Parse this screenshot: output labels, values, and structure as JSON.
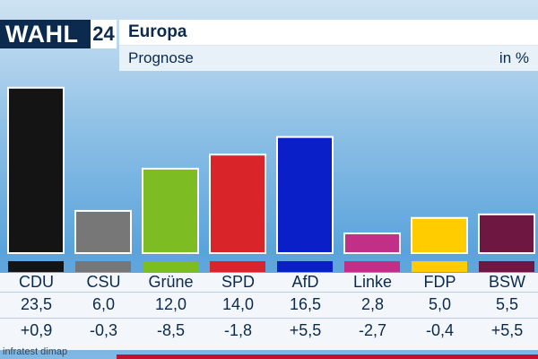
{
  "logo": {
    "text": "WAHL",
    "number": "24"
  },
  "header": {
    "title": "Europa",
    "subtitle": "Prognose",
    "unit": "in %"
  },
  "source": "infratest dimap",
  "colors": {
    "CDU": "#141414",
    "CSU": "#777777",
    "Grüne": "#7dbd23",
    "SPD": "#d9242a",
    "AfD": "#0b1fc8",
    "Linke": "#c12f86",
    "FDP": "#ffcc00",
    "BSW": "#6e1740"
  },
  "chart_data": {
    "type": "bar",
    "title": "Europa",
    "subtitle": "Prognose",
    "unit": "in %",
    "categories": [
      "CDU",
      "CSU",
      "Grüne",
      "SPD",
      "AfD",
      "Linke",
      "FDP",
      "BSW"
    ],
    "values": [
      23.5,
      6.0,
      12.0,
      14.0,
      16.5,
      2.8,
      5.0,
      5.5
    ],
    "value_labels": [
      "23,5",
      "6,0",
      "12,0",
      "14,0",
      "16,5",
      "2,8",
      "5,0",
      "5,5"
    ],
    "changes": [
      0.9,
      -0.3,
      -8.5,
      -1.8,
      5.5,
      -2.7,
      -0.4,
      5.5
    ],
    "change_labels": [
      "+0,9",
      "-0,3",
      "-8,5",
      "-1,8",
      "+5,5",
      "-2,7",
      "-0,4",
      "+5,5"
    ],
    "ylim": [
      0,
      25
    ]
  }
}
